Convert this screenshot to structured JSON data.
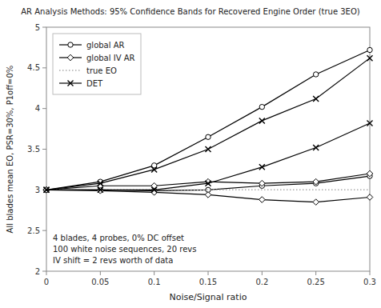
{
  "chart_data": {
    "type": "line",
    "title": "AR Analysis Methods: 95% Confidence Bands for Recovered Engine Order (true 3EO)",
    "x_label": "Noise/Signal ratio",
    "y_label": "All blades mean EO, PSR=30%, P1off=0%",
    "x": [
      0,
      0.05,
      0.1,
      0.15,
      0.2,
      0.25,
      0.3
    ],
    "series": [
      {
        "name": "global AR",
        "color": "#000000",
        "marker": "circle",
        "upper": [
          3.0,
          3.1,
          3.3,
          3.65,
          4.02,
          4.42,
          4.72
        ],
        "lower": [
          3.0,
          3.0,
          2.99,
          3.0,
          3.05,
          3.08,
          3.17
        ]
      },
      {
        "name": "global IV AR",
        "color": "#000000",
        "marker": "diamond",
        "upper": [
          3.0,
          3.05,
          3.05,
          3.1,
          3.08,
          3.1,
          3.2
        ],
        "lower": [
          3.0,
          2.99,
          2.97,
          2.94,
          2.88,
          2.85,
          2.91
        ]
      },
      {
        "name": "true EO",
        "type": "hline",
        "color": "#aaaaaa",
        "line_style": "dotted",
        "value": 3.0
      },
      {
        "name": "DET",
        "color": "#000000",
        "marker": "x",
        "upper": [
          3.0,
          3.08,
          3.25,
          3.5,
          3.85,
          4.12,
          4.62
        ],
        "lower": [
          3.0,
          3.0,
          3.0,
          3.08,
          3.28,
          3.52,
          3.82
        ]
      }
    ],
    "annotations": [
      "4 blades, 4 probes, 0% DC offset",
      "100 white noise sequences, 20 revs",
      "IV shift = 2 revs worth of data"
    ],
    "xlim": [
      0,
      0.3
    ],
    "ylim": [
      2,
      5
    ],
    "xticks": [
      0,
      0.05,
      0.1,
      0.15,
      0.2,
      0.25,
      0.3
    ],
    "yticks": [
      2,
      2.5,
      3,
      3.5,
      4,
      4.5,
      5
    ],
    "legend": "upper left",
    "grid": false
  }
}
